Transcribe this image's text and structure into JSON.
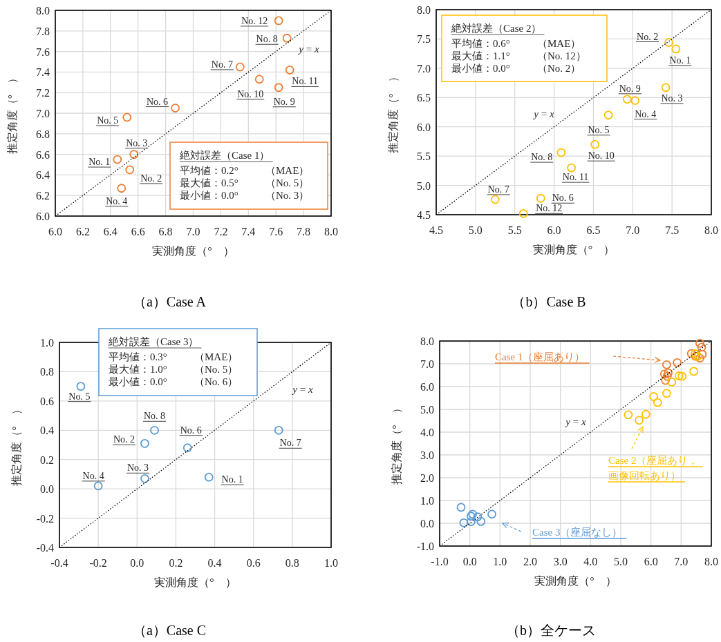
{
  "chart_data": [
    {
      "type": "scatter",
      "title": "（a）Case A",
      "xlabel": "実測角度（°　）",
      "ylabel": "推定角度（°　）",
      "grid": true,
      "marker": "circle",
      "xlim": [
        6,
        8
      ],
      "ylim": [
        6,
        8
      ],
      "xticks": [
        {
          "value": 6,
          "label": "6.0"
        },
        {
          "value": 6.2,
          "label": "6.2"
        },
        {
          "value": 6.4,
          "label": "6.4"
        },
        {
          "value": 6.6,
          "label": "6.6"
        },
        {
          "value": 6.8,
          "label": "6.8"
        },
        {
          "value": 7,
          "label": "7.0"
        },
        {
          "value": 7.2,
          "label": "7.2"
        },
        {
          "value": 7.4,
          "label": "7.4"
        },
        {
          "value": 7.6,
          "label": "7.6"
        },
        {
          "value": 7.8,
          "label": "7.8"
        },
        {
          "value": 8,
          "label": "8.0"
        }
      ],
      "yticks": [
        {
          "value": 6,
          "label": "6.0"
        },
        {
          "value": 6.2,
          "label": "6.2"
        },
        {
          "value": 6.4,
          "label": "6.4"
        },
        {
          "value": 6.6,
          "label": "6.6"
        },
        {
          "value": 6.8,
          "label": "6.8"
        },
        {
          "value": 7,
          "label": "7.0"
        },
        {
          "value": 7.2,
          "label": "7.2"
        },
        {
          "value": 7.4,
          "label": "7.4"
        },
        {
          "value": 7.6,
          "label": "7.6"
        },
        {
          "value": 7.8,
          "label": "7.8"
        },
        {
          "value": 8,
          "label": "8.0"
        }
      ],
      "annotations": [
        "絶対誤差（Case 1）",
        "平均値：0.2°　（MAE）",
        "最大値：0.5°　（No. 5）",
        "最小値：0.0°　（No. 3）",
        {
          "text": "No. 1",
          "x": 6.45,
          "y": 6.55
        },
        {
          "text": "No. 2",
          "x": 6.54,
          "y": 6.45
        },
        {
          "text": "No. 3",
          "x": 6.57,
          "y": 6.6
        },
        {
          "text": "No. 4",
          "x": 6.48,
          "y": 6.27
        },
        {
          "text": "No. 5",
          "x": 6.52,
          "y": 6.96
        },
        {
          "text": "No. 6",
          "x": 6.87,
          "y": 7.05
        },
        {
          "text": "No. 7",
          "x": 7.34,
          "y": 7.45
        },
        {
          "text": "No. 8",
          "x": 7.68,
          "y": 7.73
        },
        {
          "text": "No. 9",
          "x": 7.62,
          "y": 7.25
        },
        {
          "text": "No. 10",
          "x": 7.48,
          "y": 7.33
        },
        {
          "text": "No. 11",
          "x": 7.7,
          "y": 7.42
        },
        {
          "text": "No. 12",
          "x": 7.62,
          "y": 7.9
        }
      ],
      "series": [
        {
          "color": "#ed7d31",
          "x": [
            6.45,
            6.54,
            6.57,
            6.48,
            6.52,
            6.87,
            7.34,
            7.68,
            7.62,
            7.48,
            7.7,
            7.62
          ],
          "values": [
            6.55,
            6.45,
            6.6,
            6.27,
            6.96,
            7.05,
            7.45,
            7.73,
            7.25,
            7.33,
            7.42,
            7.9
          ]
        },
        {
          "type": "line",
          "name": "*y* = *x*",
          "color": "#000000",
          "line_style": "dotted",
          "marker": "none",
          "x": [
            6,
            8
          ],
          "values": [
            6,
            8
          ]
        }
      ]
    },
    {
      "type": "scatter",
      "title": "（b）Case B",
      "xlabel": "実測角度（°　）",
      "ylabel": "推定角度（°　）",
      "grid": true,
      "marker": "circle",
      "xlim": [
        4.5,
        8
      ],
      "ylim": [
        4.5,
        8
      ],
      "xticks": [
        {
          "value": 4.5,
          "label": "4.5"
        },
        {
          "value": 5,
          "label": "5.0"
        },
        {
          "value": 5.5,
          "label": "5.5"
        },
        {
          "value": 6,
          "label": "6.0"
        },
        {
          "value": 6.5,
          "label": "6.5"
        },
        {
          "value": 7,
          "label": "7.0"
        },
        {
          "value": 7.5,
          "label": "7.5"
        },
        {
          "value": 8,
          "label": "8.0"
        }
      ],
      "yticks": [
        {
          "value": 4.5,
          "label": "4.5"
        },
        {
          "value": 5,
          "label": "5.0"
        },
        {
          "value": 5.5,
          "label": "5.5"
        },
        {
          "value": 6,
          "label": "6.0"
        },
        {
          "value": 6.5,
          "label": "6.5"
        },
        {
          "value": 7,
          "label": "7.0"
        },
        {
          "value": 7.5,
          "label": "7.5"
        },
        {
          "value": 8,
          "label": "8.0"
        }
      ],
      "annotations": [
        "絶対誤差（Case 2）",
        "平均値：0.6°　（MAE）",
        "最大値：1.1°　（No. 12）",
        "最小値：0.0°　（No. 2）",
        {
          "text": "No. 1",
          "x": 7.55,
          "y": 7.33
        },
        {
          "text": "No. 2",
          "x": 7.46,
          "y": 7.44
        },
        {
          "text": "No. 3",
          "x": 7.42,
          "y": 6.67
        },
        {
          "text": "No. 4",
          "x": 7.03,
          "y": 6.45
        },
        {
          "text": "No. 5",
          "x": 6.69,
          "y": 6.2
        },
        {
          "text": "No. 6",
          "x": 5.83,
          "y": 4.78
        },
        {
          "text": "No. 7",
          "x": 5.25,
          "y": 4.76
        },
        {
          "text": "No. 8",
          "x": 6.09,
          "y": 5.56
        },
        {
          "text": "No. 9",
          "x": 6.93,
          "y": 6.47
        },
        {
          "text": "No. 10",
          "x": 6.52,
          "y": 5.7
        },
        {
          "text": "No. 11",
          "x": 6.22,
          "y": 5.3
        },
        {
          "text": "No. 12",
          "x": 5.61,
          "y": 4.52
        }
      ],
      "series": [
        {
          "color": "#ffc000",
          "x": [
            7.55,
            7.46,
            7.42,
            7.03,
            6.69,
            5.83,
            5.25,
            6.09,
            6.93,
            6.52,
            6.22,
            5.61
          ],
          "values": [
            7.33,
            7.44,
            6.67,
            6.45,
            6.2,
            4.78,
            4.76,
            5.56,
            6.47,
            5.7,
            5.3,
            4.52
          ]
        },
        {
          "type": "line",
          "name": "*y* = *x*",
          "color": "#000000",
          "line_style": "dotted",
          "marker": "none",
          "x": [
            4.5,
            8
          ],
          "values": [
            4.5,
            8
          ]
        }
      ]
    },
    {
      "type": "scatter",
      "title": "（a）Case C",
      "xlabel": "実測角度（°　）",
      "ylabel": "推定角度（°　）",
      "grid": true,
      "marker": "circle",
      "xlim": [
        -0.4,
        1
      ],
      "ylim": [
        -0.4,
        1
      ],
      "xticks": [
        {
          "value": -0.4,
          "label": "-0.4"
        },
        {
          "value": -0.2,
          "label": "-0.2"
        },
        {
          "value": 0,
          "label": "0.0"
        },
        {
          "value": 0.2,
          "label": "0.2"
        },
        {
          "value": 0.4,
          "label": "0.4"
        },
        {
          "value": 0.6,
          "label": "0.6"
        },
        {
          "value": 0.8,
          "label": "0.8"
        },
        {
          "value": 1,
          "label": "1.0"
        }
      ],
      "yticks": [
        {
          "value": -0.4,
          "label": "-0.4"
        },
        {
          "value": -0.2,
          "label": "-0.2"
        },
        {
          "value": 0,
          "label": "0.0"
        },
        {
          "value": 0.2,
          "label": "0.2"
        },
        {
          "value": 0.4,
          "label": "0.4"
        },
        {
          "value": 0.6,
          "label": "0.6"
        },
        {
          "value": 0.8,
          "label": "0.8"
        },
        {
          "value": 1,
          "label": "1.0"
        }
      ],
      "annotations": [
        "絶対誤差（Case 3）",
        "平均値：0.3°　（MAE）",
        "最大値：1.0°　（No. 5）",
        "最小値：0.0°　（No. 6）",
        {
          "text": "No. 1",
          "x": 0.37,
          "y": 0.08
        },
        {
          "text": "No. 2",
          "x": 0.04,
          "y": 0.31
        },
        {
          "text": "No. 3",
          "x": 0.04,
          "y": 0.07
        },
        {
          "text": "No. 4",
          "x": -0.2,
          "y": 0.02
        },
        {
          "text": "No. 5",
          "x": -0.29,
          "y": 0.7
        },
        {
          "text": "No. 6",
          "x": 0.26,
          "y": 0.28
        },
        {
          "text": "No. 7",
          "x": 0.73,
          "y": 0.4
        },
        {
          "text": "No. 8",
          "x": 0.09,
          "y": 0.4
        }
      ],
      "series": [
        {
          "color": "#5b9bd5",
          "x": [
            0.37,
            0.04,
            0.04,
            -0.2,
            -0.29,
            0.26,
            0.73,
            0.09
          ],
          "values": [
            0.08,
            0.31,
            0.07,
            0.02,
            0.7,
            0.28,
            0.4,
            0.4
          ]
        },
        {
          "type": "line",
          "name": "*y* = *x*",
          "color": "#000000",
          "line_style": "dotted",
          "marker": "none",
          "x": [
            -0.4,
            1
          ],
          "values": [
            -0.4,
            1
          ]
        }
      ]
    },
    {
      "type": "scatter",
      "title": "（b）全ケース",
      "xlabel": "実測角度（°　）",
      "ylabel": "推定角度（°　）",
      "grid": true,
      "marker": "circle",
      "xlim": [
        -1,
        8
      ],
      "ylim": [
        -1,
        8
      ],
      "xticks": [
        {
          "value": -1,
          "label": "-1.0"
        },
        {
          "value": 0,
          "label": "0.0"
        },
        {
          "value": 1,
          "label": "1.0"
        },
        {
          "value": 2,
          "label": "2.0"
        },
        {
          "value": 3,
          "label": "3.0"
        },
        {
          "value": 4,
          "label": "4.0"
        },
        {
          "value": 5,
          "label": "5.0"
        },
        {
          "value": 6,
          "label": "6.0"
        },
        {
          "value": 7,
          "label": "7.0"
        },
        {
          "value": 8,
          "label": "8.0"
        }
      ],
      "yticks": [
        {
          "value": -1,
          "label": "-1.0"
        },
        {
          "value": 0,
          "label": "0.0"
        },
        {
          "value": 1,
          "label": "1.0"
        },
        {
          "value": 2,
          "label": "2.0"
        },
        {
          "value": 3,
          "label": "3.0"
        },
        {
          "value": 4,
          "label": "4.0"
        },
        {
          "value": 5,
          "label": "5.0"
        },
        {
          "value": 6,
          "label": "6.0"
        },
        {
          "value": 7,
          "label": "7.0"
        },
        {
          "value": 8,
          "label": "8.0"
        }
      ],
      "series": [
        {
          "name": "Case 1（座屈あり）",
          "color": "#ed7d31",
          "x": [
            6.45,
            6.54,
            6.57,
            6.48,
            6.52,
            6.87,
            7.34,
            7.68,
            7.62,
            7.48,
            7.7,
            7.62
          ],
          "values": [
            6.55,
            6.45,
            6.6,
            6.27,
            6.96,
            7.05,
            7.45,
            7.73,
            7.25,
            7.33,
            7.42,
            7.9
          ]
        },
        {
          "name": "Case 2（座屈あり，画像回転あり）",
          "color": "#ffc000",
          "x": [
            7.55,
            7.46,
            7.42,
            7.03,
            6.69,
            5.83,
            5.25,
            6.09,
            6.93,
            6.52,
            6.22,
            5.61
          ],
          "values": [
            7.33,
            7.44,
            6.67,
            6.45,
            6.2,
            4.78,
            4.76,
            5.56,
            6.47,
            5.7,
            5.3,
            4.52
          ]
        },
        {
          "name": "Case 3（座屈なし）",
          "color": "#5b9bd5",
          "x": [
            0.37,
            0.04,
            0.04,
            -0.2,
            -0.29,
            0.26,
            0.73,
            0.09
          ],
          "values": [
            0.08,
            0.31,
            0.07,
            0.02,
            0.7,
            0.28,
            0.4,
            0.4
          ]
        },
        {
          "type": "line",
          "name": "*y* = *x*",
          "color": "#000000",
          "line_style": "dotted",
          "marker": "none",
          "x": [
            -1,
            8
          ],
          "values": [
            -1,
            8
          ]
        }
      ]
    }
  ]
}
